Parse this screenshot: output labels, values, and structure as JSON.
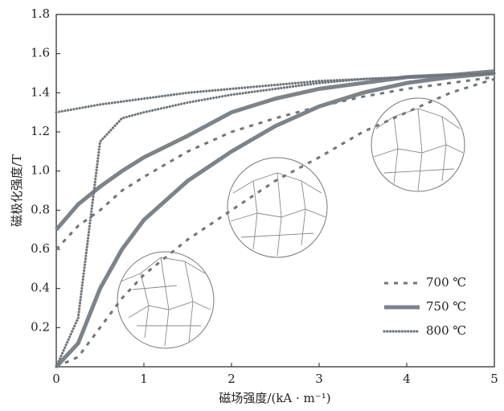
{
  "chart_data": {
    "type": "line",
    "x_label": "磁场强度/(kA · m⁻¹)",
    "y_label": "磁极化强度/T",
    "x": [
      0,
      0.25,
      0.5,
      0.75,
      1,
      1.5,
      2,
      2.5,
      3,
      3.5,
      4,
      4.5,
      5
    ],
    "series": [
      {
        "name": "700 ℃",
        "color": "#6e757b",
        "style": "dashed",
        "values": [
          0,
          0.05,
          0.2,
          0.35,
          0.47,
          0.65,
          0.8,
          0.95,
          1.07,
          1.2,
          1.3,
          1.4,
          1.47
        ],
        "return_values": [
          0.6,
          0.72,
          0.8,
          0.9,
          0.97,
          1.1,
          1.2,
          1.27,
          1.33,
          1.38,
          1.42,
          1.45,
          1.48
        ]
      },
      {
        "name": "750 ℃",
        "color": "#7c8389",
        "style": "solid",
        "values": [
          0,
          0.12,
          0.4,
          0.6,
          0.75,
          0.95,
          1.1,
          1.23,
          1.33,
          1.4,
          1.45,
          1.48,
          1.5
        ],
        "return_values": [
          0.7,
          0.83,
          0.92,
          1.0,
          1.07,
          1.18,
          1.3,
          1.37,
          1.42,
          1.45,
          1.48,
          1.49,
          1.51
        ]
      },
      {
        "name": "800 ℃",
        "color": "#6e757b",
        "style": "dotted",
        "values": [
          0,
          0.25,
          1.15,
          1.27,
          1.3,
          1.35,
          1.39,
          1.42,
          1.45,
          1.47,
          1.48,
          1.49,
          1.5
        ],
        "return_values": [
          1.3,
          1.32,
          1.34,
          1.355,
          1.37,
          1.4,
          1.42,
          1.44,
          1.46,
          1.47,
          1.48,
          1.49,
          1.5
        ]
      }
    ],
    "xlim": [
      0,
      5
    ],
    "ylim": [
      0,
      1.8
    ],
    "xticks": [
      0,
      1,
      2,
      3,
      4,
      5
    ],
    "yticks": [
      0.2,
      0.4,
      0.6,
      0.8,
      {
        "value": 1,
        "label": "1.0"
      },
      1.2,
      1.4,
      1.6,
      1.8
    ],
    "legend": "lower-right"
  }
}
